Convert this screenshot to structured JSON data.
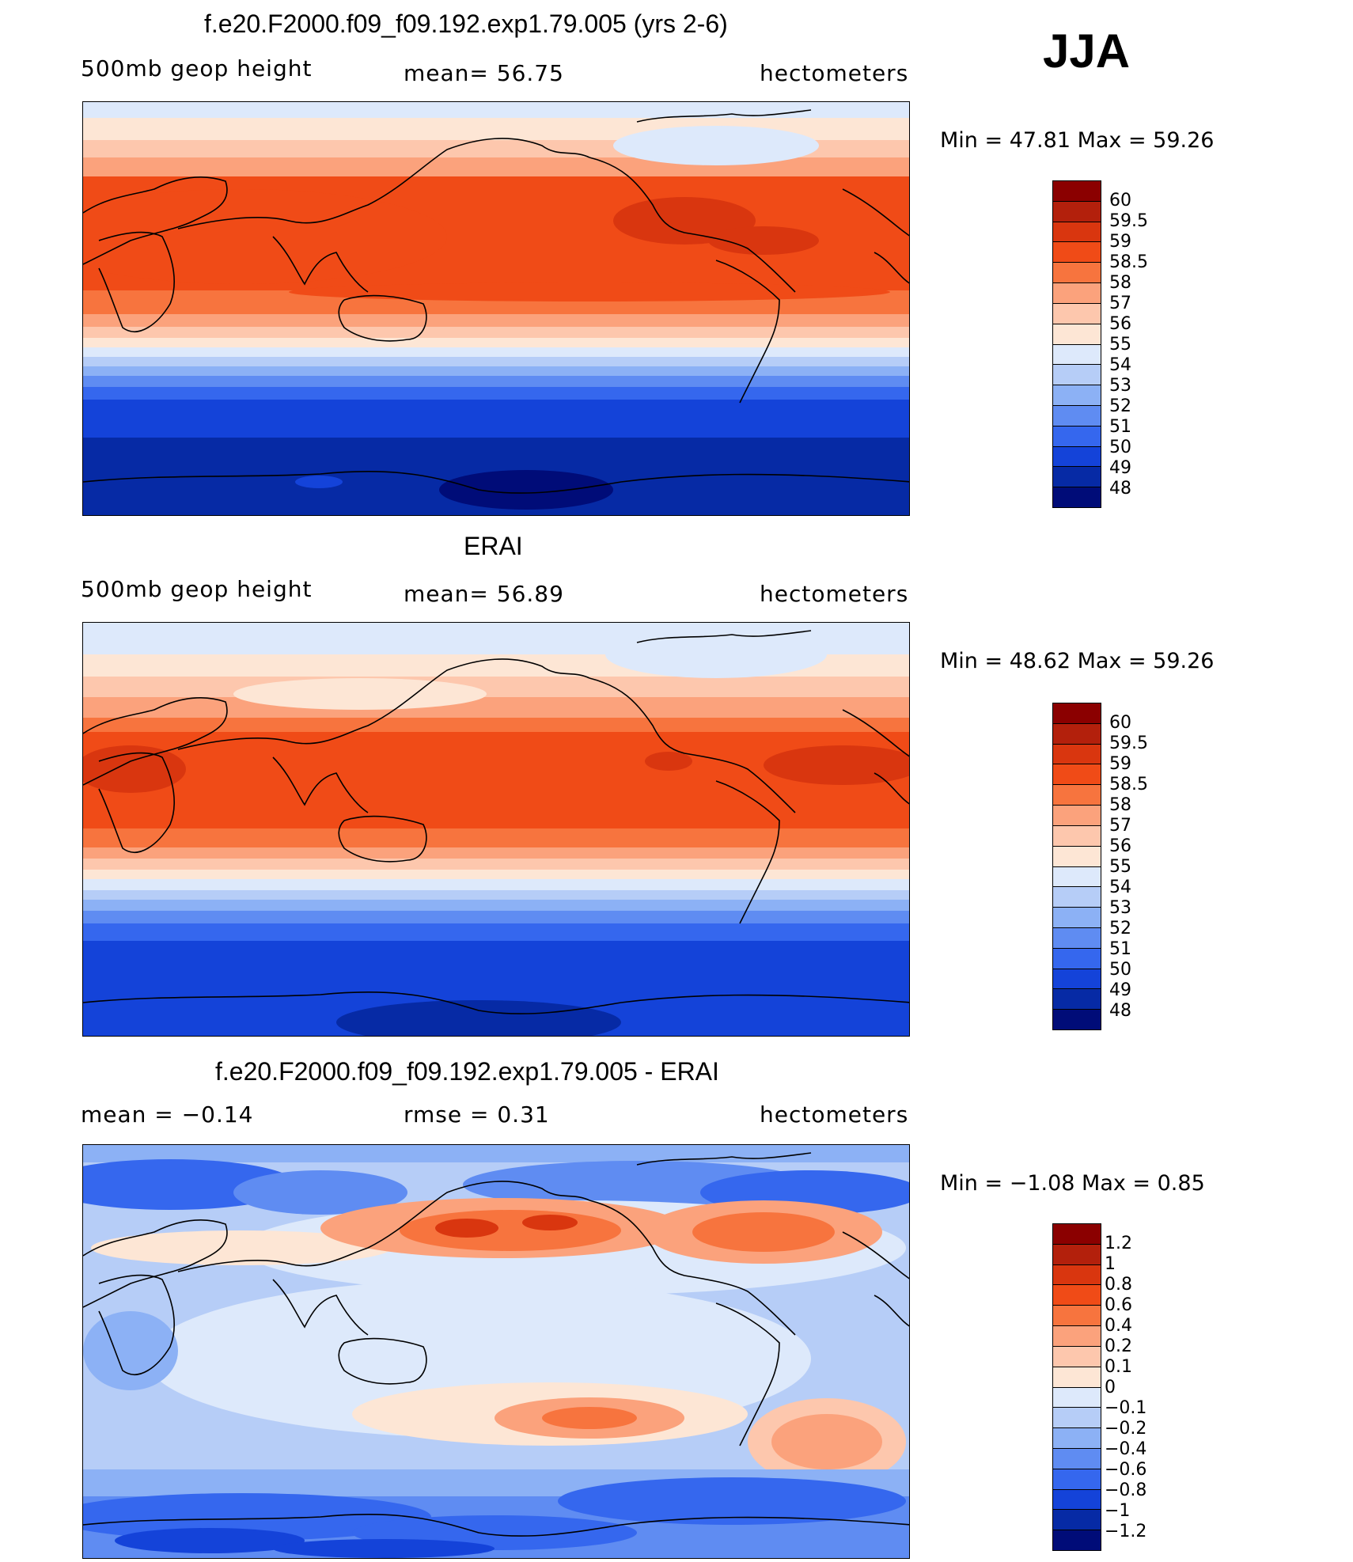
{
  "season": "JJA",
  "units": "hectometers",
  "panels": [
    {
      "title": "f.e20.F2000.f09_f09.192.exp1.79.005 (yrs 2-6)",
      "left_label": "500mb  geop  height",
      "center_label": "mean=   56.75",
      "right_label": "hectometers",
      "min_label": "Min  =    47.81  Max  =    59.26",
      "field": "model"
    },
    {
      "title": "ERAI",
      "left_label": "500mb  geop  height",
      "center_label": "mean=   56.89",
      "right_label": "hectometers",
      "min_label": "Min  =    48.62  Max  =    59.26",
      "field": "obs"
    },
    {
      "title": "f.e20.F2000.f09_f09.192.exp1.79.005 - ERAI",
      "left_label": "mean  =    −0.14",
      "center_label": "rmse  =     0.31",
      "right_label": "hectometers",
      "min_label": "Min  =    −1.08  Max  =      0.85",
      "field": "diff"
    }
  ],
  "colorbars": {
    "height": {
      "labels": [
        "60",
        "59.5",
        "59",
        "58.5",
        "58",
        "57",
        "56",
        "55",
        "54",
        "53",
        "52",
        "51",
        "50",
        "49",
        "48"
      ],
      "colors": [
        "#8b0000",
        "#b3200c",
        "#d9360f",
        "#f04b17",
        "#f7743e",
        "#fba27c",
        "#fdc7ad",
        "#fde6d5",
        "#dde9fb",
        "#b6cdf7",
        "#8cb1f5",
        "#5f8cf2",
        "#3567ee",
        "#1443d9",
        "#062aa5",
        "#000c78"
      ]
    },
    "diff": {
      "labels": [
        "1.2",
        "1",
        "0.8",
        "0.6",
        "0.4",
        "0.2",
        "0.1",
        "0",
        "−0.1",
        "−0.2",
        "−0.4",
        "−0.6",
        "−0.8",
        "−1",
        "−1.2"
      ],
      "colors": [
        "#8b0000",
        "#b3200c",
        "#d9360f",
        "#f04b17",
        "#f7743e",
        "#fba27c",
        "#fdc7ad",
        "#fde6d5",
        "#dde9fb",
        "#b6cdf7",
        "#8cb1f5",
        "#5f8cf2",
        "#3567ee",
        "#1443d9",
        "#062aa5",
        "#000c78"
      ]
    }
  }
}
